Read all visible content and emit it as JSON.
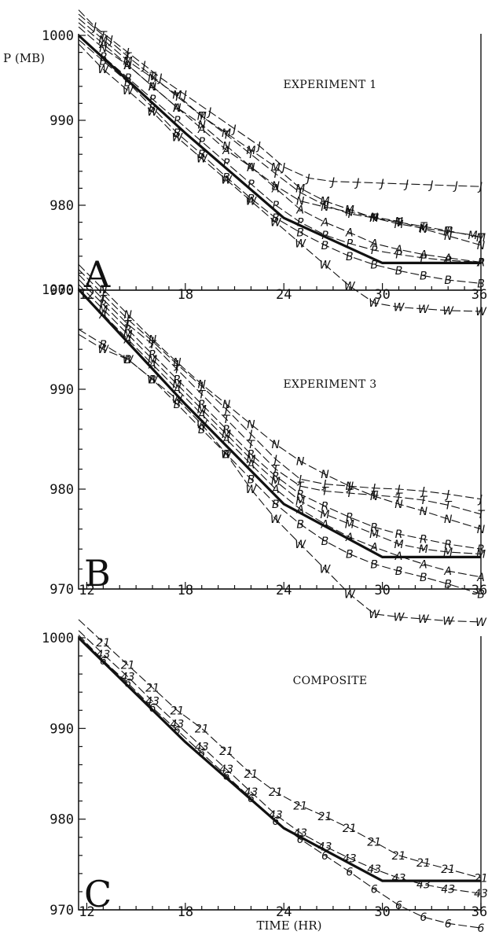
{
  "axes": {
    "ylabel": "P (MB)",
    "xlabel": "TIME (HR)"
  },
  "chart_data": [
    {
      "type": "line",
      "panel": "A",
      "title": "EXPERIMENT 1",
      "xlim": [
        11.5,
        36
      ],
      "ylim": [
        970,
        1000
      ],
      "x_ticks": [
        "12",
        "18",
        "24",
        "30",
        "36"
      ],
      "y_ticks": [
        "1000",
        "990",
        "980",
        "970"
      ],
      "series": [
        {
          "id": "observed",
          "style": "bold-solid",
          "x": [
            11.5,
            18,
            24,
            30,
            36
          ],
          "y": [
            1000,
            988.5,
            978.5,
            973.2,
            973.2
          ]
        },
        {
          "name": "J",
          "x": [
            11.5,
            12.5,
            13.5,
            14.5,
            15.5,
            16.5,
            18,
            19.5,
            21,
            22.5,
            24,
            25.5,
            27,
            28.5,
            30,
            31.5,
            33,
            34.5,
            36
          ],
          "y": [
            1003,
            1001,
            999.5,
            998,
            996.5,
            995,
            993,
            991,
            989,
            987,
            984.5,
            983.2,
            982.8,
            982.7,
            982.6,
            982.5,
            982.4,
            982.3,
            982.2
          ]
        },
        {
          "name": "M",
          "x": [
            11.5,
            13,
            14.5,
            16,
            17.5,
            19,
            20.5,
            22,
            23.5,
            25,
            26.5,
            28,
            29.5,
            31,
            32.5,
            34,
            35.5,
            36
          ],
          "y": [
            1002,
            999.5,
            997,
            995,
            993,
            990.5,
            988.5,
            986.5,
            984.5,
            982,
            980.5,
            979.5,
            978.5,
            977.8,
            977.3,
            976.9,
            976.5,
            976.2
          ]
        },
        {
          "name": "T",
          "x": [
            11.5,
            13,
            14.5,
            16,
            17.5,
            19,
            20.5,
            22,
            23.5,
            25,
            26.5,
            28,
            29.5,
            31,
            32.5,
            34,
            36
          ],
          "y": [
            1002.5,
            1000,
            997.5,
            995.2,
            992.8,
            990.5,
            988.3,
            986,
            983.7,
            981.5,
            980,
            979,
            978.5,
            978,
            977.5,
            977,
            976.2
          ]
        },
        {
          "name": "N",
          "x": [
            11.5,
            13,
            14.5,
            16,
            17.5,
            19,
            20.5,
            22,
            23.5,
            25,
            26.5,
            28,
            29.5,
            31,
            32.5,
            34,
            36
          ],
          "y": [
            1001,
            998.5,
            996.5,
            994,
            991.5,
            989.5,
            987,
            984.5,
            982.3,
            980.5,
            979.8,
            979.2,
            978.6,
            978.1,
            977.2,
            976.4,
            975.3
          ]
        },
        {
          "name": "A",
          "x": [
            11.5,
            13,
            14.5,
            16,
            17.5,
            19,
            20.5,
            22,
            23.5,
            25,
            26.5,
            28,
            29.5,
            31,
            32.5,
            34,
            36
          ],
          "y": [
            1001.5,
            999,
            996.5,
            994,
            991.5,
            989,
            986.5,
            984.5,
            982,
            979.5,
            978,
            976.8,
            975.5,
            974.8,
            974.2,
            973.8,
            973.3
          ]
        },
        {
          "name": "P",
          "x": [
            11.5,
            13,
            14.5,
            16,
            17.5,
            19,
            20.5,
            22,
            23.5,
            25,
            26.5,
            28,
            29.5,
            31,
            32.5,
            34,
            36
          ],
          "y": [
            1000,
            997.5,
            995,
            992.5,
            990,
            987.5,
            985,
            982.5,
            980,
            978,
            976.5,
            975.5,
            974.7,
            974.2,
            973.8,
            973.5,
            973.3
          ]
        },
        {
          "name": "B",
          "x": [
            11.5,
            13,
            14.5,
            16,
            17.5,
            19,
            20.5,
            22,
            23.5,
            25,
            26.5,
            28,
            29.5,
            31,
            32.5,
            34,
            36
          ],
          "y": [
            999.5,
            997,
            994.5,
            991.5,
            988.5,
            986,
            983.3,
            980.8,
            978.5,
            976.8,
            975.3,
            974,
            973,
            972.3,
            971.7,
            971.2,
            970.8
          ]
        },
        {
          "name": "W",
          "x": [
            11.5,
            13,
            14.5,
            16,
            17.5,
            19,
            20.5,
            22,
            23.5,
            25,
            26.5,
            28,
            29.5,
            31,
            32.5,
            34,
            36
          ],
          "y": [
            999,
            996,
            993.5,
            991,
            988,
            985.5,
            983,
            980.5,
            978,
            975.5,
            973,
            970.5,
            968.5,
            968,
            967.8,
            967.6,
            967.5
          ]
        }
      ]
    },
    {
      "type": "line",
      "panel": "B",
      "title": "EXPERIMENT 3",
      "xlim": [
        11.5,
        36
      ],
      "ylim": [
        970,
        1000
      ],
      "x_ticks": [
        "12",
        "18",
        "24",
        "30",
        "36"
      ],
      "y_ticks": [
        "1000",
        "990",
        "980",
        "970"
      ],
      "series": [
        {
          "id": "observed",
          "style": "bold-solid",
          "x": [
            11.5,
            18,
            24,
            30,
            36
          ],
          "y": [
            1000,
            988.5,
            978.5,
            973.2,
            973.2
          ]
        },
        {
          "name": "J",
          "x": [
            11.5,
            13,
            14.5,
            16,
            17.5,
            19,
            20.5,
            22,
            23.5,
            25,
            26.5,
            28,
            29.5,
            31,
            32.5,
            34,
            36
          ],
          "y": [
            1002,
            999.5,
            997,
            994.8,
            992.5,
            990.3,
            988,
            985.5,
            983,
            981,
            980.5,
            980.3,
            980.1,
            980,
            979.8,
            979.5,
            979
          ]
        },
        {
          "name": "N",
          "x": [
            11.5,
            13,
            14.5,
            16,
            17.5,
            19,
            20.5,
            22,
            23.5,
            25,
            26.5,
            28,
            29.5,
            31,
            32.5,
            34,
            36
          ],
          "y": [
            1002.5,
            1000,
            997.5,
            995,
            992.7,
            990.5,
            988.5,
            986.5,
            984.5,
            982.8,
            981.5,
            980.3,
            979.3,
            978.5,
            977.8,
            977,
            976
          ]
        },
        {
          "name": "T",
          "x": [
            11.5,
            13,
            14.5,
            16,
            17.5,
            19,
            20.5,
            22,
            23.5,
            25,
            26.5,
            28,
            29.5,
            31,
            32.5,
            34,
            36
          ],
          "y": [
            1001.5,
            999,
            996.5,
            994.5,
            992,
            989.5,
            987,
            984.5,
            982,
            980.3,
            979.8,
            979.6,
            979.4,
            979.2,
            978.9,
            978.4,
            977.5
          ]
        },
        {
          "name": "R",
          "x": [
            11.5,
            13,
            14.5,
            16,
            17.5,
            19,
            20.5,
            22,
            23.5,
            25,
            26.5,
            28,
            29.5,
            31,
            32.5,
            34,
            36
          ],
          "y": [
            1001,
            998.5,
            996,
            993.5,
            991,
            988.5,
            986,
            983.5,
            981.3,
            979.5,
            978.3,
            977.2,
            976.2,
            975.5,
            975,
            974.5,
            974
          ]
        },
        {
          "name": "M",
          "x": [
            11.5,
            13,
            14.5,
            16,
            17.5,
            19,
            20.5,
            22,
            23.5,
            25,
            26.5,
            28,
            29.5,
            31,
            32.5,
            34,
            36
          ],
          "y": [
            1000.5,
            998,
            995.5,
            993,
            990.5,
            988,
            985.5,
            983,
            980.8,
            978.8,
            977.5,
            976.5,
            975.5,
            974.5,
            974,
            973.7,
            973.5
          ]
        },
        {
          "name": "A",
          "x": [
            11.5,
            13,
            14.5,
            16,
            17.5,
            19,
            20.5,
            22,
            23.5,
            25,
            26.5,
            28,
            29.5,
            31,
            32.5,
            34,
            36
          ],
          "y": [
            1000,
            997.5,
            995,
            992.5,
            990,
            987.5,
            985,
            982.5,
            980,
            978,
            976.5,
            975.2,
            974.2,
            973.3,
            972.5,
            971.8,
            971.2
          ]
        },
        {
          "name": "B",
          "x": [
            11.5,
            13,
            14.5,
            16,
            17.5,
            19,
            20.5,
            22,
            23.5,
            25,
            26.5,
            28,
            29.5,
            31,
            32.5,
            34,
            36
          ],
          "y": [
            996,
            994.5,
            993,
            991,
            988.5,
            986,
            983.5,
            981,
            978.5,
            976.5,
            974.8,
            973.5,
            972.5,
            971.8,
            971.2,
            970.5,
            969.5
          ]
        },
        {
          "name": "W",
          "x": [
            11.5,
            13,
            14.5,
            16,
            17.5,
            19,
            20.5,
            22,
            23.5,
            25,
            26.5,
            28,
            29.5,
            31,
            32.5,
            34,
            36
          ],
          "y": [
            995.5,
            994,
            993,
            991,
            989,
            986.5,
            983.5,
            980,
            977,
            974.5,
            972,
            969.5,
            967.5,
            967.2,
            967,
            966.8,
            966.7
          ]
        }
      ]
    },
    {
      "type": "line",
      "panel": "C",
      "title": "COMPOSITE",
      "xlim": [
        11.5,
        36
      ],
      "ylim": [
        970,
        1000
      ],
      "x_ticks": [
        "12",
        "18",
        "24",
        "30",
        "36"
      ],
      "y_ticks": [
        "1000",
        "990",
        "980",
        "970"
      ],
      "series": [
        {
          "id": "observed",
          "style": "bold-solid",
          "x": [
            11.5,
            18,
            24,
            30,
            36
          ],
          "y": [
            1000,
            988.5,
            979,
            973.2,
            973.2
          ]
        },
        {
          "name": "21",
          "x": [
            11.5,
            13,
            14.5,
            16,
            17.5,
            19,
            20.5,
            22,
            23.5,
            25,
            26.5,
            28,
            29.5,
            31,
            32.5,
            34,
            36
          ],
          "y": [
            1002,
            999.5,
            997,
            994.5,
            992,
            990,
            987.5,
            985,
            983,
            981.5,
            980.3,
            979,
            977.5,
            976,
            975.2,
            974.5,
            973.5
          ]
        },
        {
          "name": "43",
          "x": [
            11.5,
            13,
            14.5,
            16,
            17.5,
            19,
            20.5,
            22,
            23.5,
            25,
            26.5,
            28,
            29.5,
            31,
            32.5,
            34,
            36
          ],
          "y": [
            1000.8,
            998.2,
            995.7,
            993,
            990.5,
            988,
            985.5,
            983,
            980.5,
            978.5,
            977,
            975.7,
            974.5,
            973.5,
            972.8,
            972.3,
            971.8
          ]
        },
        {
          "name": "6",
          "x": [
            11.5,
            13,
            14.5,
            16,
            17.5,
            19,
            20.5,
            22,
            23.5,
            25,
            26.5,
            28,
            29.5,
            31,
            32.5,
            34,
            36
          ],
          "y": [
            1000.3,
            997.5,
            995,
            992.3,
            989.8,
            987.3,
            984.8,
            982.3,
            979.8,
            977.8,
            976,
            974.2,
            972.3,
            970.5,
            969.2,
            968.5,
            968
          ]
        }
      ]
    }
  ]
}
